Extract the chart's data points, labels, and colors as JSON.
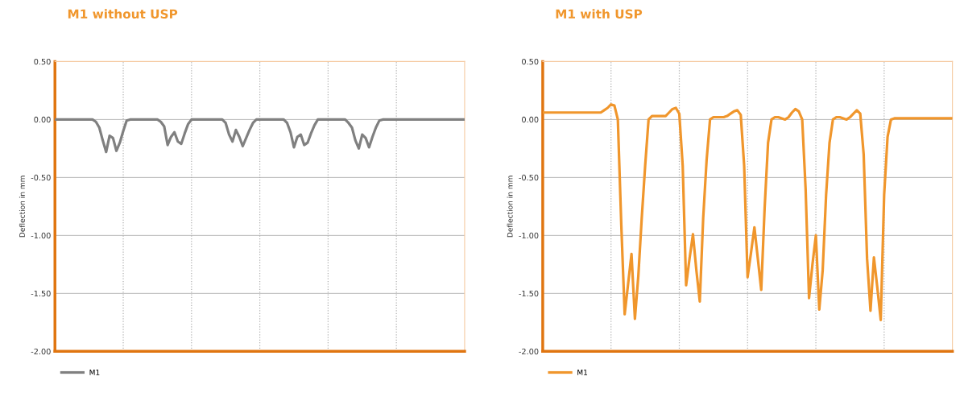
{
  "chart_data": [
    {
      "type": "line",
      "title": "M1 without USP",
      "ylabel": "Deflection in mm",
      "categories": [
        null,
        null,
        null,
        null,
        null,
        null,
        null,
        null,
        null,
        null,
        null,
        null,
        null,
        null,
        null,
        null,
        null,
        null,
        null,
        null,
        null,
        null,
        null,
        null,
        null,
        null,
        null,
        null,
        null,
        null,
        null,
        null,
        null,
        null,
        null,
        null,
        null,
        null,
        null,
        null,
        null,
        null,
        null,
        null,
        null,
        null,
        null,
        null,
        null,
        null,
        null,
        null,
        null,
        null,
        null,
        null,
        null,
        null,
        null,
        null,
        null,
        null,
        null,
        null,
        null,
        null,
        null,
        null,
        null,
        null,
        null,
        null,
        null,
        null,
        null,
        null,
        null,
        null,
        null,
        null,
        null,
        null,
        null,
        null,
        null,
        null,
        null,
        null,
        null,
        null,
        null,
        null,
        null,
        null,
        null,
        null,
        null,
        null,
        null,
        null,
        null,
        null,
        null,
        null,
        null,
        null,
        null,
        null,
        null,
        null,
        null,
        null,
        null,
        null,
        null,
        null,
        null,
        null,
        null,
        null,
        null
      ],
      "ylim": [
        -2,
        0.5
      ],
      "yticks": [
        {
          "value": 0.5,
          "label": "0.50"
        },
        {
          "value": 0,
          "label": "0.00"
        },
        {
          "value": -0.5,
          "label": "-0.50"
        },
        {
          "value": -1,
          "label": "-1.00"
        },
        {
          "value": -1.5,
          "label": "-1.50"
        },
        {
          "value": -2,
          "label": "-2.00"
        }
      ],
      "grid": true,
      "legend": "bottom left",
      "line_style": "solid",
      "series": [
        {
          "name": "M1",
          "color": "#808080",
          "values": [
            0,
            0,
            0,
            0,
            0,
            0,
            0,
            0,
            0,
            0,
            0,
            0,
            -0.02,
            -0.07,
            -0.18,
            -0.28,
            -0.14,
            -0.16,
            -0.27,
            -0.2,
            -0.1,
            -0.01,
            0,
            0,
            0,
            0,
            0,
            0,
            0,
            0,
            0,
            -0.02,
            -0.06,
            -0.22,
            -0.15,
            -0.11,
            -0.19,
            -0.21,
            -0.12,
            -0.04,
            0,
            0,
            0,
            0,
            0,
            0,
            0,
            0,
            0,
            0,
            -0.03,
            -0.13,
            -0.19,
            -0.09,
            -0.15,
            -0.23,
            -0.16,
            -0.09,
            -0.03,
            0,
            0,
            0,
            0,
            0,
            0,
            0,
            0,
            0,
            -0.03,
            -0.11,
            -0.24,
            -0.15,
            -0.13,
            -0.22,
            -0.2,
            -0.12,
            -0.05,
            0,
            0,
            0,
            0,
            0,
            0,
            0,
            0,
            0,
            -0.03,
            -0.07,
            -0.18,
            -0.25,
            -0.13,
            -0.16,
            -0.24,
            -0.15,
            -0.07,
            -0.01,
            0,
            0,
            0,
            0,
            0,
            0,
            0,
            0,
            0,
            0,
            0,
            0,
            0,
            0,
            0,
            0,
            0,
            0,
            0,
            0,
            0,
            0,
            0,
            0,
            0
          ]
        }
      ]
    },
    {
      "type": "line",
      "title": "M1 with USP",
      "ylabel": "Deflection in mm",
      "categories": [
        null,
        null,
        null,
        null,
        null,
        null,
        null,
        null,
        null,
        null,
        null,
        null,
        null,
        null,
        null,
        null,
        null,
        null,
        null,
        null,
        null,
        null,
        null,
        null,
        null,
        null,
        null,
        null,
        null,
        null,
        null,
        null,
        null,
        null,
        null,
        null,
        null,
        null,
        null,
        null,
        null,
        null,
        null,
        null,
        null,
        null,
        null,
        null,
        null,
        null,
        null,
        null,
        null,
        null,
        null,
        null,
        null,
        null,
        null,
        null,
        null,
        null,
        null,
        null,
        null,
        null,
        null,
        null,
        null,
        null,
        null,
        null,
        null,
        null,
        null,
        null,
        null,
        null,
        null,
        null,
        null,
        null,
        null,
        null,
        null,
        null,
        null,
        null,
        null,
        null,
        null,
        null,
        null,
        null,
        null,
        null,
        null,
        null,
        null,
        null,
        null,
        null,
        null,
        null,
        null,
        null,
        null,
        null,
        null,
        null,
        null,
        null,
        null,
        null,
        null,
        null,
        null,
        null,
        null,
        null,
        null
      ],
      "ylim": [
        -2,
        0.5
      ],
      "yticks": [
        {
          "value": 0.5,
          "label": "0.50"
        },
        {
          "value": 0,
          "label": "0.00"
        },
        {
          "value": -0.5,
          "label": "-0.50"
        },
        {
          "value": -1,
          "label": "-1.00"
        },
        {
          "value": -1.5,
          "label": "-1.50"
        },
        {
          "value": -2,
          "label": "-2.00"
        }
      ],
      "grid": true,
      "legend": "bottom left",
      "line_style": "solid",
      "series": [
        {
          "name": "M1",
          "color": "#f0962c",
          "values": [
            0.06,
            0.06,
            0.06,
            0.06,
            0.06,
            0.06,
            0.06,
            0.06,
            0.06,
            0.06,
            0.06,
            0.06,
            0.06,
            0.06,
            0.06,
            0.06,
            0.06,
            0.06,
            0.08,
            0.1,
            0.13,
            0.12,
            0.0,
            -0.9,
            -1.68,
            -1.42,
            -1.16,
            -1.72,
            -1.35,
            -0.85,
            -0.4,
            0.0,
            0.03,
            0.03,
            0.03,
            0.03,
            0.03,
            0.06,
            0.09,
            0.1,
            0.05,
            -0.4,
            -1.43,
            -1.2,
            -0.99,
            -1.3,
            -1.57,
            -0.85,
            -0.35,
            0.0,
            0.02,
            0.02,
            0.02,
            0.02,
            0.03,
            0.05,
            0.07,
            0.08,
            0.04,
            -0.4,
            -1.36,
            -1.15,
            -0.93,
            -1.2,
            -1.47,
            -0.76,
            -0.2,
            0.0,
            0.02,
            0.02,
            0.01,
            0.0,
            0.02,
            0.06,
            0.09,
            0.07,
            0.0,
            -0.6,
            -1.54,
            -1.25,
            -1.0,
            -1.64,
            -1.3,
            -0.65,
            -0.2,
            0.0,
            0.02,
            0.02,
            0.01,
            0.0,
            0.02,
            0.05,
            0.08,
            0.05,
            -0.3,
            -1.2,
            -1.65,
            -1.19,
            -1.45,
            -1.73,
            -0.65,
            -0.15,
            0.0,
            0.01,
            0.01,
            0.01,
            0.01,
            0.01,
            0.01,
            0.01,
            0.01,
            0.01,
            0.01,
            0.01,
            0.01,
            0.01,
            0.01,
            0.01,
            0.01,
            0.01,
            0.01
          ]
        }
      ]
    }
  ]
}
